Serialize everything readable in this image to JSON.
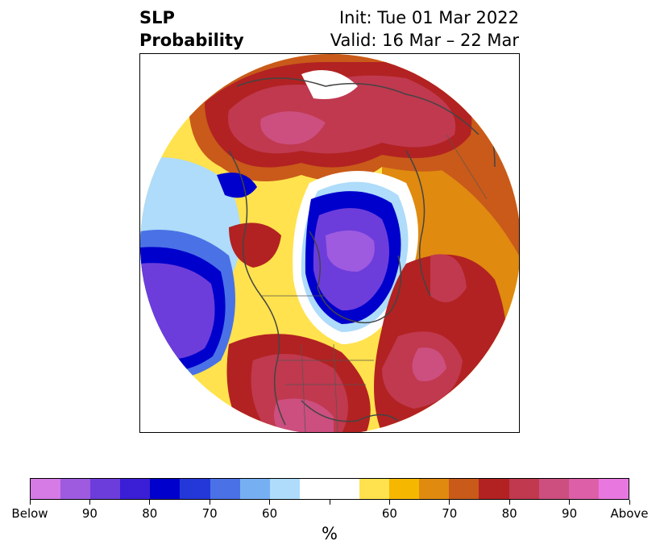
{
  "title": {
    "left_line1": "SLP",
    "left_line2": "Probability",
    "init": "Init: Tue 01 Mar 2022",
    "valid": "Valid: 16 Mar – 22 Mar"
  },
  "colorbar": {
    "colors": [
      "#d67ae6",
      "#9e5be0",
      "#6d3ddb",
      "#3a1fd6",
      "#0000cc",
      "#2438d9",
      "#4a72e6",
      "#77b0f2",
      "#aedcfa",
      "#ffffff",
      "#ffffff",
      "#ffe24d",
      "#f5b700",
      "#e08a10",
      "#c95a1a",
      "#b22222",
      "#c0394f",
      "#cc4f7f",
      "#dd5fa8",
      "#e878e0"
    ],
    "tick_labels": [
      "Below",
      "90",
      "80",
      "70",
      "60",
      "",
      "60",
      "70",
      "80",
      "90",
      "Above"
    ],
    "unit": "%"
  },
  "map": {
    "projection": "north-polar-stereographic",
    "regions": [
      {
        "name": "arctic-low",
        "category": "below",
        "peak": "90"
      },
      {
        "name": "north-pacific-low",
        "category": "below",
        "peak": "90"
      },
      {
        "name": "siberia-high",
        "category": "above",
        "peak": "90"
      },
      {
        "name": "north-atlantic-high",
        "category": "above",
        "peak": "90"
      },
      {
        "name": "us-high",
        "category": "above",
        "peak": "90"
      },
      {
        "name": "europe-high",
        "category": "above",
        "peak": "70"
      }
    ]
  }
}
